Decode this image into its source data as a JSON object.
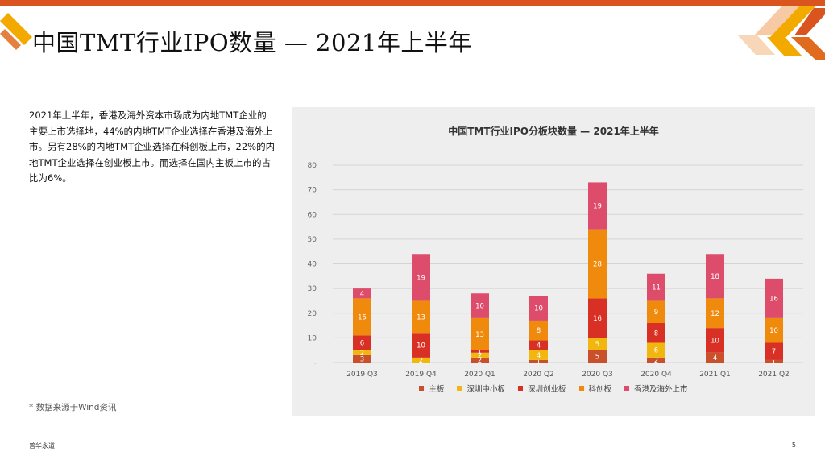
{
  "page": {
    "title": "中国TMT行业IPO数量 — 2021年上半年",
    "paragraph": "2021年上半年，香港及海外资本市场成为内地TMT企业的主要上市选择地，44%的内地TMT企业选择在香港及海外上市。另有28%的内地TMT企业选择在科创板上市，22%的内地TMT企业选择在创业板上市。而选择在国内主板上市的占比为6%。",
    "source": "* 数据来源于Wind资讯",
    "footer_brand": "普华永道",
    "page_number": "5"
  },
  "colors": {
    "brand_orange": "#d9541e",
    "accent_yellow": "#f2a900"
  },
  "chart_data": {
    "type": "bar",
    "stacked": true,
    "title": "中国TMT行业IPO分板块数量 — 2021年上半年",
    "categories": [
      "2019 Q3",
      "2019 Q4",
      "2020 Q1",
      "2020 Q2",
      "2020 Q3",
      "2020 Q4",
      "2021 Q1",
      "2021 Q2"
    ],
    "ylim": [
      0,
      80
    ],
    "yticks": [
      0,
      10,
      20,
      30,
      40,
      50,
      60,
      70,
      80
    ],
    "ytick_labels": [
      "-",
      "10",
      "20",
      "30",
      "40",
      "50",
      "60",
      "70",
      "80"
    ],
    "grid": true,
    "legend_position": "bottom",
    "series": [
      {
        "name": "主板",
        "color": "#c8502a",
        "values": [
          3,
          0,
          2,
          1,
          5,
          2,
          4,
          1
        ]
      },
      {
        "name": "深圳中小板",
        "color": "#f2b70f",
        "values": [
          2,
          2,
          2,
          4,
          5,
          6,
          0,
          0
        ]
      },
      {
        "name": "深圳创业板",
        "color": "#d93025",
        "values": [
          6,
          10,
          1,
          4,
          16,
          8,
          10,
          7
        ]
      },
      {
        "name": "科创板",
        "color": "#ef8a0c",
        "values": [
          15,
          13,
          13,
          8,
          28,
          9,
          12,
          10
        ]
      },
      {
        "name": "香港及海外上市",
        "color": "#dd4c6a",
        "values": [
          4,
          19,
          10,
          10,
          19,
          11,
          18,
          16
        ]
      }
    ]
  }
}
